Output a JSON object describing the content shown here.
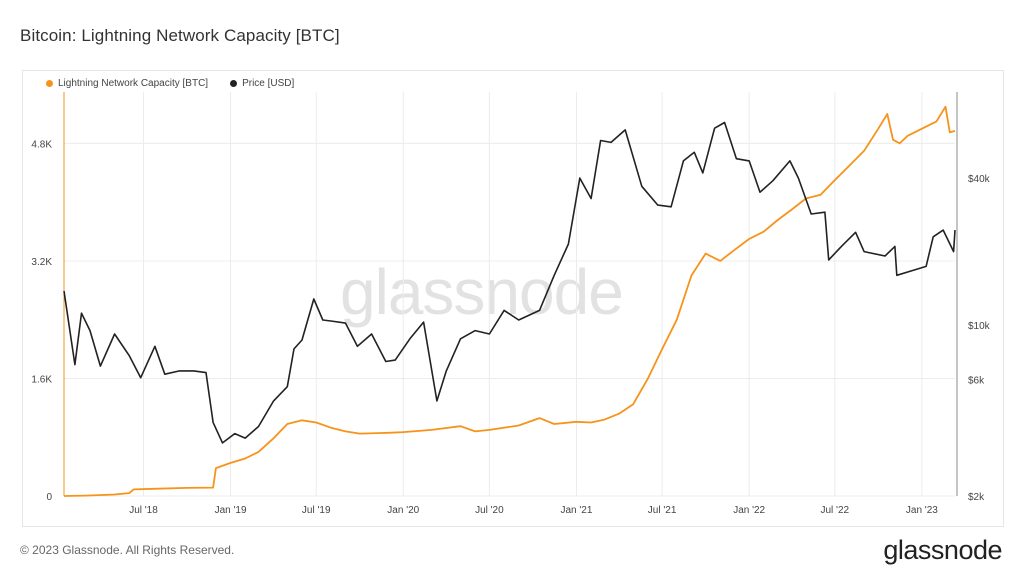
{
  "title": "Bitcoin: Lightning Network Capacity [BTC]",
  "copyright": "© 2023 Glassnode. All Rights Reserved.",
  "brand": "glassnode",
  "watermark": "glassnode",
  "colors": {
    "capacity": "#f7931a",
    "price": "#222222",
    "grid": "#ececec"
  },
  "chart_data": {
    "type": "line",
    "title": "Bitcoin: Lightning Network Capacity [BTC]",
    "legend": {
      "placement": "top-left"
    },
    "grid": true,
    "x_range": [
      "2018-01-14",
      "2023-03-12"
    ],
    "x_ticks": [
      {
        "date": "2018-07-01",
        "label": "Jul '18"
      },
      {
        "date": "2019-01-01",
        "label": "Jan '19"
      },
      {
        "date": "2019-07-01",
        "label": "Jul '19"
      },
      {
        "date": "2020-01-01",
        "label": "Jan '20"
      },
      {
        "date": "2020-07-01",
        "label": "Jul '20"
      },
      {
        "date": "2021-01-01",
        "label": "Jan '21"
      },
      {
        "date": "2021-07-01",
        "label": "Jul '21"
      },
      {
        "date": "2022-01-01",
        "label": "Jan '22"
      },
      {
        "date": "2022-07-01",
        "label": "Jul '22"
      },
      {
        "date": "2023-01-01",
        "label": "Jan '23"
      }
    ],
    "y_left": {
      "range": [
        0,
        5500
      ],
      "ticks": [
        {
          "v": 0,
          "label": "0"
        },
        {
          "v": 1600,
          "label": "1.6K"
        },
        {
          "v": 3200,
          "label": "3.2K"
        },
        {
          "v": 4800,
          "label": "4.8K"
        }
      ]
    },
    "y_right": {
      "scale": "log",
      "range": [
        2000,
        90000
      ],
      "ticks": [
        {
          "v": 2000,
          "label": "$2k"
        },
        {
          "v": 6000,
          "label": "$6k"
        },
        {
          "v": 10000,
          "label": "$10k"
        },
        {
          "v": 40000,
          "label": "$40k"
        }
      ]
    },
    "series": [
      {
        "name": "Lightning Network Capacity [BTC]",
        "axis": "left",
        "color": "#f7931a",
        "points": [
          [
            "2018-01-14",
            0
          ],
          [
            "2018-03-01",
            5
          ],
          [
            "2018-05-01",
            20
          ],
          [
            "2018-06-01",
            40
          ],
          [
            "2018-06-10",
            90
          ],
          [
            "2018-08-01",
            100
          ],
          [
            "2018-10-01",
            110
          ],
          [
            "2018-11-25",
            115
          ],
          [
            "2018-12-01",
            380
          ],
          [
            "2019-01-01",
            450
          ],
          [
            "2019-02-01",
            510
          ],
          [
            "2019-03-01",
            600
          ],
          [
            "2019-04-01",
            780
          ],
          [
            "2019-05-01",
            980
          ],
          [
            "2019-06-01",
            1030
          ],
          [
            "2019-07-01",
            1000
          ],
          [
            "2019-08-01",
            930
          ],
          [
            "2019-09-01",
            880
          ],
          [
            "2019-10-01",
            850
          ],
          [
            "2019-12-01",
            860
          ],
          [
            "2020-01-01",
            870
          ],
          [
            "2020-03-01",
            900
          ],
          [
            "2020-05-01",
            950
          ],
          [
            "2020-06-01",
            880
          ],
          [
            "2020-07-01",
            900
          ],
          [
            "2020-09-01",
            960
          ],
          [
            "2020-10-15",
            1060
          ],
          [
            "2020-11-15",
            980
          ],
          [
            "2021-01-01",
            1010
          ],
          [
            "2021-02-01",
            1000
          ],
          [
            "2021-03-01",
            1040
          ],
          [
            "2021-04-01",
            1120
          ],
          [
            "2021-05-01",
            1250
          ],
          [
            "2021-06-01",
            1600
          ],
          [
            "2021-07-01",
            2000
          ],
          [
            "2021-08-01",
            2400
          ],
          [
            "2021-09-01",
            3000
          ],
          [
            "2021-10-01",
            3300
          ],
          [
            "2021-11-01",
            3200
          ],
          [
            "2021-12-01",
            3350
          ],
          [
            "2022-01-01",
            3500
          ],
          [
            "2022-02-01",
            3600
          ],
          [
            "2022-03-01",
            3750
          ],
          [
            "2022-04-01",
            3900
          ],
          [
            "2022-05-01",
            4050
          ],
          [
            "2022-06-01",
            4100
          ],
          [
            "2022-07-01",
            4300
          ],
          [
            "2022-08-01",
            4500
          ],
          [
            "2022-09-01",
            4700
          ],
          [
            "2022-10-01",
            5000
          ],
          [
            "2022-10-20",
            5200
          ],
          [
            "2022-11-01",
            4850
          ],
          [
            "2022-11-15",
            4800
          ],
          [
            "2022-12-01",
            4900
          ],
          [
            "2023-01-01",
            5000
          ],
          [
            "2023-02-01",
            5100
          ],
          [
            "2023-02-20",
            5300
          ],
          [
            "2023-03-01",
            4950
          ],
          [
            "2023-03-12",
            4970
          ]
        ]
      },
      {
        "name": "Price [USD]",
        "axis": "right",
        "color": "#222222",
        "points": [
          [
            "2018-01-14",
            13800
          ],
          [
            "2018-02-06",
            6900
          ],
          [
            "2018-02-20",
            11200
          ],
          [
            "2018-03-10",
            9500
          ],
          [
            "2018-04-01",
            6800
          ],
          [
            "2018-05-01",
            9200
          ],
          [
            "2018-06-01",
            7500
          ],
          [
            "2018-06-25",
            6100
          ],
          [
            "2018-07-25",
            8200
          ],
          [
            "2018-08-15",
            6300
          ],
          [
            "2018-09-15",
            6500
          ],
          [
            "2018-10-15",
            6500
          ],
          [
            "2018-11-10",
            6400
          ],
          [
            "2018-11-25",
            4000
          ],
          [
            "2018-12-15",
            3300
          ],
          [
            "2019-01-10",
            3600
          ],
          [
            "2019-02-01",
            3450
          ],
          [
            "2019-03-01",
            3850
          ],
          [
            "2019-04-02",
            4900
          ],
          [
            "2019-05-01",
            5600
          ],
          [
            "2019-05-15",
            8000
          ],
          [
            "2019-06-01",
            8700
          ],
          [
            "2019-06-26",
            12800
          ],
          [
            "2019-07-15",
            10500
          ],
          [
            "2019-08-01",
            10400
          ],
          [
            "2019-09-01",
            10200
          ],
          [
            "2019-09-26",
            8200
          ],
          [
            "2019-10-26",
            9200
          ],
          [
            "2019-11-25",
            7100
          ],
          [
            "2019-12-15",
            7200
          ],
          [
            "2020-01-15",
            8800
          ],
          [
            "2020-02-13",
            10300
          ],
          [
            "2020-03-12",
            4900
          ],
          [
            "2020-04-01",
            6500
          ],
          [
            "2020-05-01",
            8800
          ],
          [
            "2020-06-01",
            9500
          ],
          [
            "2020-07-01",
            9200
          ],
          [
            "2020-08-01",
            11500
          ],
          [
            "2020-09-01",
            10500
          ],
          [
            "2020-10-15",
            11500
          ],
          [
            "2020-11-15",
            16000
          ],
          [
            "2020-12-15",
            21500
          ],
          [
            "2021-01-08",
            40000
          ],
          [
            "2021-02-01",
            33000
          ],
          [
            "2021-02-21",
            57000
          ],
          [
            "2021-03-15",
            56000
          ],
          [
            "2021-04-14",
            63000
          ],
          [
            "2021-05-19",
            37000
          ],
          [
            "2021-06-22",
            31000
          ],
          [
            "2021-07-20",
            30500
          ],
          [
            "2021-08-15",
            47000
          ],
          [
            "2021-09-07",
            51000
          ],
          [
            "2021-09-25",
            42000
          ],
          [
            "2021-10-20",
            64000
          ],
          [
            "2021-11-10",
            67500
          ],
          [
            "2021-12-05",
            48000
          ],
          [
            "2022-01-01",
            47000
          ],
          [
            "2022-01-24",
            35000
          ],
          [
            "2022-02-20",
            39000
          ],
          [
            "2022-03-28",
            47000
          ],
          [
            "2022-04-15",
            40000
          ],
          [
            "2022-05-12",
            28500
          ],
          [
            "2022-06-10",
            29000
          ],
          [
            "2022-06-18",
            18500
          ],
          [
            "2022-07-15",
            21000
          ],
          [
            "2022-08-14",
            24000
          ],
          [
            "2022-09-01",
            20000
          ],
          [
            "2022-10-15",
            19200
          ],
          [
            "2022-11-05",
            21000
          ],
          [
            "2022-11-09",
            16000
          ],
          [
            "2022-12-15",
            16800
          ],
          [
            "2023-01-10",
            17400
          ],
          [
            "2023-01-25",
            23000
          ],
          [
            "2023-02-15",
            24500
          ],
          [
            "2023-03-09",
            20000
          ],
          [
            "2023-03-12",
            24500
          ]
        ]
      }
    ]
  }
}
